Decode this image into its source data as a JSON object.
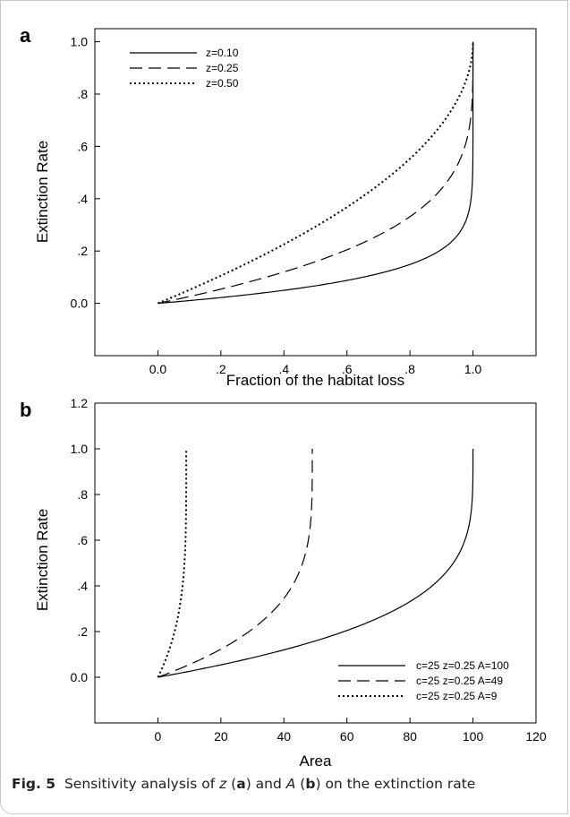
{
  "chart_data": [
    {
      "type": "line",
      "panel_label": "a",
      "xlabel": "Fraction of the habitat loss",
      "ylabel": "Extinction Rate",
      "xlim": [
        -0.2,
        1.2
      ],
      "ylim": [
        -0.2,
        1.05
      ],
      "xticks": [
        0.0,
        0.2,
        0.4,
        0.6,
        0.8,
        1.0
      ],
      "xtick_labels": [
        "0.0",
        ".2",
        ".4",
        ".6",
        ".8",
        "1.0"
      ],
      "yticks": [
        0.0,
        0.2,
        0.4,
        0.6,
        0.8,
        1.0
      ],
      "ytick_labels": [
        "0.0",
        ".2",
        ".4",
        ".6",
        ".8",
        "1.0"
      ],
      "grid": false,
      "legend_position": "top-left",
      "series": [
        {
          "name": "z=0.10",
          "style": "solid",
          "z": 0.1
        },
        {
          "name": "z=0.25",
          "style": "dashed",
          "z": 0.25
        },
        {
          "name": "z=0.50",
          "style": "dotted",
          "z": 0.5
        }
      ]
    },
    {
      "type": "line",
      "panel_label": "b",
      "xlabel": "Area",
      "ylabel": "Extinction Rate",
      "xlim": [
        -20,
        120
      ],
      "ylim": [
        -0.2,
        1.2
      ],
      "xticks": [
        0,
        20,
        40,
        60,
        80,
        100,
        120
      ],
      "xtick_labels": [
        "0",
        "20",
        "40",
        "60",
        "80",
        "100",
        "120"
      ],
      "yticks": [
        0.0,
        0.2,
        0.4,
        0.6,
        0.8,
        1.0,
        1.2
      ],
      "ytick_labels": [
        "0.0",
        ".2",
        ".4",
        ".6",
        ".8",
        "1.0",
        "1.2"
      ],
      "grid": false,
      "legend_position": "bottom-right",
      "series": [
        {
          "name": "c=25 z=0.25 A=100",
          "style": "solid",
          "z": 0.25,
          "A": 100
        },
        {
          "name": "c=25 z=0.25 A=49",
          "style": "dashed",
          "z": 0.25,
          "A": 49
        },
        {
          "name": "c=25 z=0.25 A=9",
          "style": "dotted",
          "z": 0.25,
          "A": 9
        }
      ]
    }
  ],
  "caption": {
    "label": "Fig. 5",
    "text_1": "Sensitivity analysis of ",
    "var_z": "z",
    "text_2": " (",
    "panel_a": "a",
    "text_3": ") and ",
    "var_a": "A",
    "text_4": " (",
    "panel_b": "b",
    "text_5": ") on the extinction rate"
  }
}
